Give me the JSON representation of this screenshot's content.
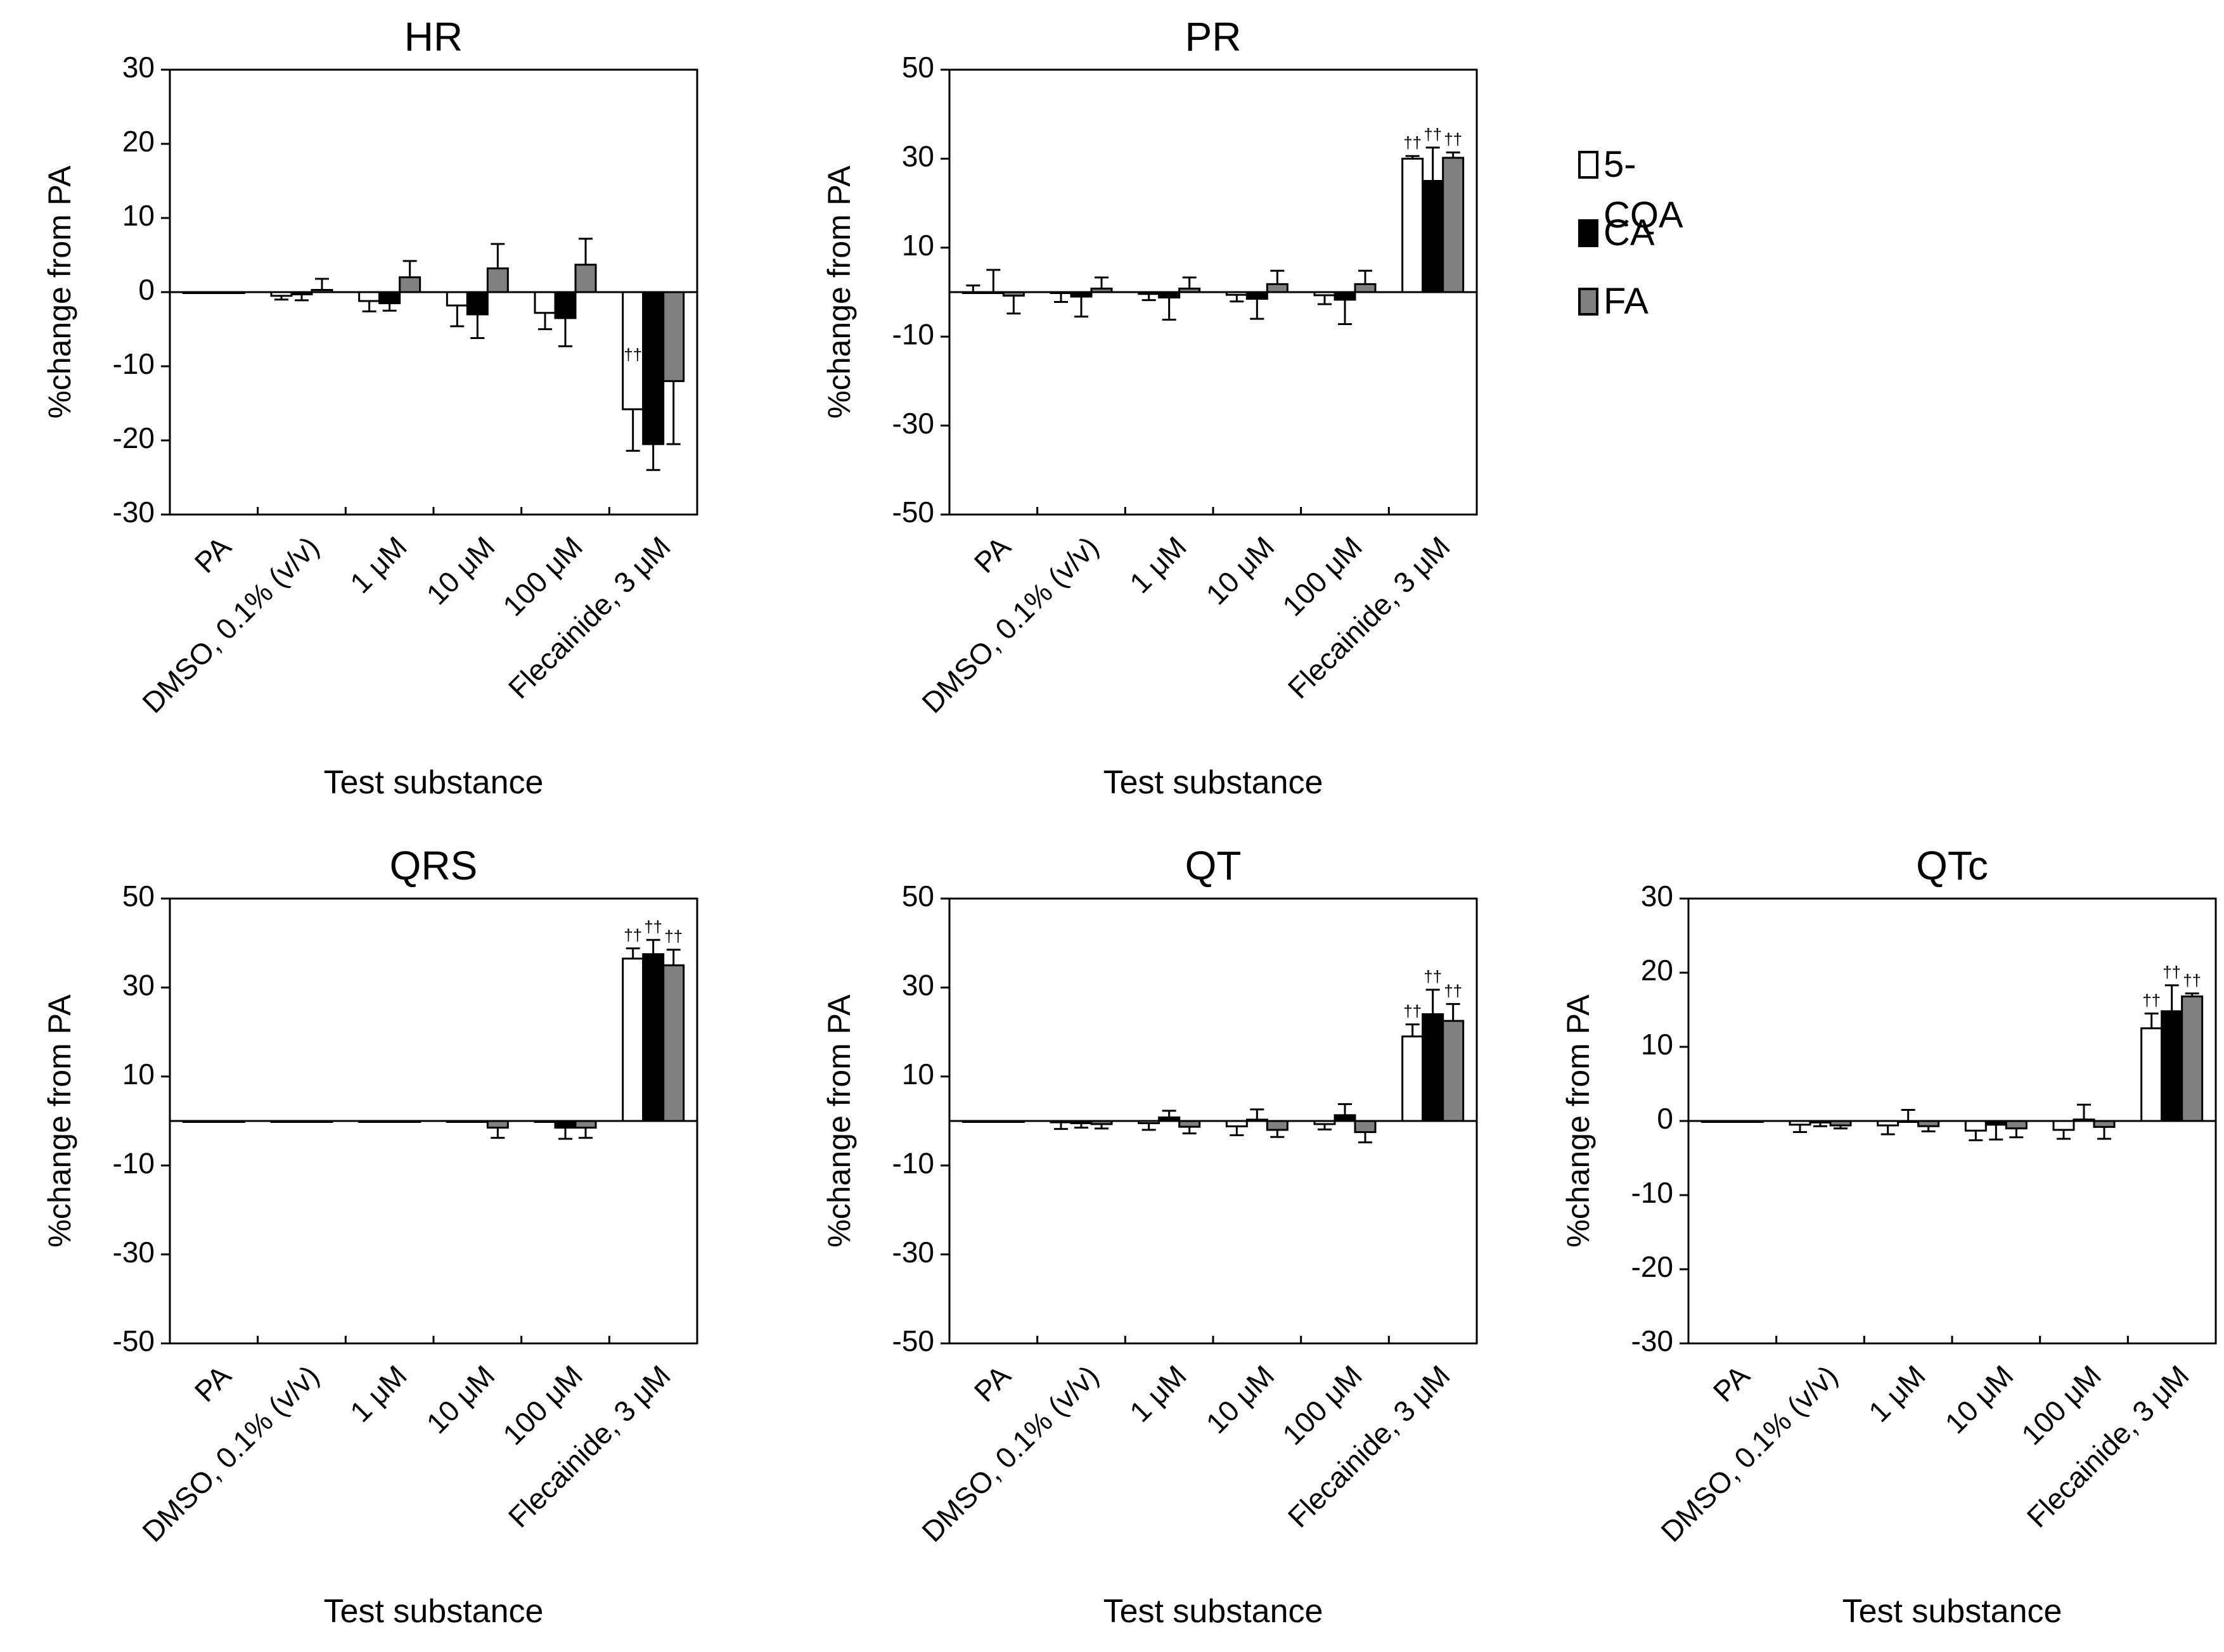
{
  "legend": [
    {
      "label": "5-CQA",
      "color": "#ffffff"
    },
    {
      "label": "CA",
      "color": "#000000"
    },
    {
      "label": "FA",
      "color": "#808080"
    }
  ],
  "significance_mark": "††",
  "chart_data": [
    {
      "type": "bar",
      "title": "HR",
      "xlabel": "Test substance",
      "ylabel": "%change from PA",
      "ylim": [
        -30,
        30
      ],
      "yticks": [
        30,
        20,
        10,
        0,
        -10,
        -20,
        -30
      ],
      "categories": [
        "PA",
        "DMSO, 0.1% (v/v)",
        "1 μM",
        "10 μM",
        "100 μM",
        "Flecainide, 3 μM"
      ],
      "series": [
        {
          "name": "5-CQA",
          "values": [
            0,
            -0.5,
            -1.2,
            -1.8,
            -2.8,
            -15.8
          ],
          "errors": [
            0,
            0.5,
            1.4,
            2.8,
            2.2,
            5.6
          ],
          "sig": [
            false,
            false,
            false,
            false,
            false,
            true
          ]
        },
        {
          "name": "CA",
          "values": [
            0,
            -0.3,
            -1.5,
            -3.0,
            -3.5,
            -20.5
          ],
          "errors": [
            0,
            0.8,
            1.0,
            3.2,
            3.8,
            3.5
          ],
          "sig": [
            false,
            false,
            false,
            false,
            false,
            true
          ]
        },
        {
          "name": "FA",
          "values": [
            0,
            0.3,
            2.0,
            3.2,
            3.7,
            -12.0
          ],
          "errors": [
            0,
            1.5,
            2.2,
            3.3,
            3.5,
            8.5
          ],
          "sig": [
            false,
            false,
            false,
            false,
            false,
            false
          ]
        }
      ]
    },
    {
      "type": "bar",
      "title": "PR",
      "xlabel": "Test substance",
      "ylabel": "%change from PA",
      "ylim": [
        -50,
        50
      ],
      "yticks": [
        50,
        30,
        10,
        -10,
        -30,
        -50
      ],
      "categories": [
        "PA",
        "DMSO, 0.1% (v/v)",
        "1 μM",
        "10 μM",
        "100 μM",
        "Flecainide, 3 μM"
      ],
      "series": [
        {
          "name": "5-CQA",
          "values": [
            0,
            -0.2,
            -0.4,
            -0.6,
            -0.7,
            30.0
          ],
          "errors": [
            1.5,
            2.0,
            1.4,
            1.5,
            2.0,
            0.6
          ],
          "sig": [
            false,
            false,
            false,
            false,
            false,
            true
          ]
        },
        {
          "name": "CA",
          "values": [
            0,
            -1.0,
            -1.2,
            -1.5,
            -1.7,
            25.0
          ],
          "errors": [
            5.0,
            4.5,
            5.0,
            4.5,
            5.5,
            7.5
          ],
          "sig": [
            false,
            false,
            false,
            false,
            false,
            true
          ]
        },
        {
          "name": "FA",
          "values": [
            -0.8,
            0.8,
            0.8,
            1.8,
            1.8,
            30.2
          ],
          "errors": [
            4.0,
            2.5,
            2.5,
            3.0,
            3.0,
            1.2
          ],
          "sig": [
            false,
            false,
            false,
            false,
            false,
            true
          ]
        }
      ]
    },
    {
      "type": "bar",
      "title": "QRS",
      "xlabel": "Test substance",
      "ylabel": "%change from PA",
      "ylim": [
        -50,
        50
      ],
      "yticks": [
        50,
        30,
        10,
        -10,
        -30,
        -50
      ],
      "categories": [
        "PA",
        "DMSO, 0.1% (v/v)",
        "1 μM",
        "10 μM",
        "100 μM",
        "Flecainide, 3 μM"
      ],
      "series": [
        {
          "name": "5-CQA",
          "values": [
            0,
            0,
            0,
            0,
            0,
            36.5
          ],
          "errors": [
            0,
            0,
            0,
            0,
            0,
            2.3
          ],
          "sig": [
            false,
            false,
            false,
            false,
            false,
            true
          ]
        },
        {
          "name": "CA",
          "values": [
            0,
            0,
            0,
            0,
            -1.5,
            37.5
          ],
          "errors": [
            0,
            0,
            0,
            0,
            2.5,
            3.2
          ],
          "sig": [
            false,
            false,
            false,
            false,
            false,
            true
          ]
        },
        {
          "name": "FA",
          "values": [
            0,
            0,
            0,
            -1.5,
            -1.5,
            35.0
          ],
          "errors": [
            0,
            0,
            0,
            2.3,
            2.3,
            3.5
          ],
          "sig": [
            false,
            false,
            false,
            false,
            false,
            true
          ]
        }
      ]
    },
    {
      "type": "bar",
      "title": "QT",
      "xlabel": "Test substance",
      "ylabel": "%change from PA",
      "ylim": [
        -50,
        50
      ],
      "yticks": [
        50,
        30,
        10,
        -10,
        -30,
        -50
      ],
      "categories": [
        "PA",
        "DMSO, 0.1% (v/v)",
        "1 μM",
        "10 μM",
        "100 μM",
        "Flecainide, 3 μM"
      ],
      "series": [
        {
          "name": "5-CQA",
          "values": [
            0,
            -0.3,
            -0.5,
            -1.2,
            -0.7,
            19.0
          ],
          "errors": [
            0,
            1.5,
            1.5,
            2.0,
            1.2,
            2.7
          ],
          "sig": [
            false,
            false,
            false,
            false,
            false,
            true
          ]
        },
        {
          "name": "CA",
          "values": [
            0,
            -0.5,
            0.8,
            0.3,
            1.3,
            24.0
          ],
          "errors": [
            0,
            1.0,
            1.5,
            2.3,
            2.5,
            5.5
          ],
          "sig": [
            false,
            false,
            false,
            false,
            false,
            true
          ]
        },
        {
          "name": "FA",
          "values": [
            0,
            -0.7,
            -1.3,
            -2.0,
            -2.5,
            22.5
          ],
          "errors": [
            0,
            1.0,
            1.5,
            1.6,
            2.3,
            3.8
          ],
          "sig": [
            false,
            false,
            false,
            false,
            false,
            true
          ]
        }
      ]
    },
    {
      "type": "bar",
      "title": "QTc",
      "xlabel": "Test substance",
      "ylabel": "%change from PA",
      "ylim": [
        -30,
        30
      ],
      "yticks": [
        30,
        20,
        10,
        0,
        -10,
        -20,
        -30
      ],
      "categories": [
        "PA",
        "DMSO, 0.1% (v/v)",
        "1 μM",
        "10 μM",
        "100 μM",
        "Flecainide, 3 μM"
      ],
      "series": [
        {
          "name": "5-CQA",
          "values": [
            0,
            -0.5,
            -0.6,
            -1.3,
            -1.2,
            12.5
          ],
          "errors": [
            0,
            1.0,
            1.2,
            1.3,
            1.2,
            2.0
          ],
          "sig": [
            false,
            false,
            false,
            false,
            false,
            true
          ]
        },
        {
          "name": "CA",
          "values": [
            0,
            -0.2,
            0,
            -0.5,
            0.2,
            14.8
          ],
          "errors": [
            0,
            0.5,
            1.5,
            2.0,
            2.0,
            3.5
          ],
          "sig": [
            false,
            false,
            false,
            false,
            false,
            true
          ]
        },
        {
          "name": "FA",
          "values": [
            0,
            -0.6,
            -0.7,
            -1.0,
            -0.8,
            16.8
          ],
          "errors": [
            0,
            0.4,
            0.7,
            1.2,
            1.6,
            0.4
          ],
          "sig": [
            false,
            false,
            false,
            false,
            false,
            true
          ]
        }
      ]
    }
  ]
}
